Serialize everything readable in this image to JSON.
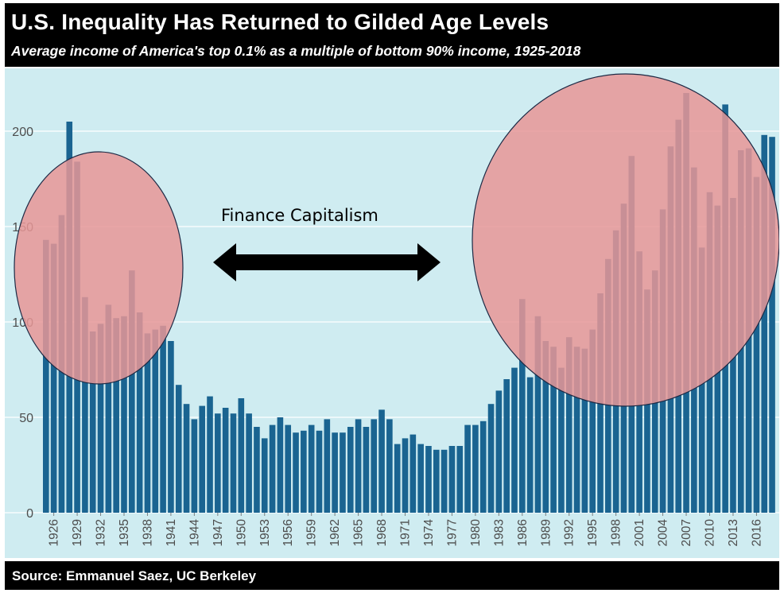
{
  "header": {
    "title": "U.S. Inequality Has Returned to Gilded Age Levels",
    "subtitle": "Average income of America's top 0.1% as a multiple of bottom 90% income, 1925-2018"
  },
  "footer": {
    "source": "Source: Emmanuel Saez, UC Berkeley"
  },
  "colors": {
    "bar": "#1a6491",
    "plot_background": "#cfecf1",
    "gridline": "#ffffff",
    "highlight_fill": "#e89696",
    "highlight_stroke": "#1c2a45",
    "arrow": "#000000"
  },
  "chart_data": {
    "type": "bar",
    "title": "U.S. Inequality Has Returned to Gilded Age Levels",
    "xlabel": "",
    "ylabel": "",
    "ylim": [
      0,
      225
    ],
    "yticks": [
      0,
      50,
      100,
      150,
      200
    ],
    "grid": true,
    "xtick_labels": [
      "1926",
      "1929",
      "1932",
      "1935",
      "1938",
      "1941",
      "1944",
      "1947",
      "1950",
      "1953",
      "1956",
      "1959",
      "1962",
      "1965",
      "1968",
      "1971",
      "1974",
      "1977",
      "1980",
      "1983",
      "1986",
      "1989",
      "1992",
      "1995",
      "1998",
      "2001",
      "2004",
      "2007",
      "2010",
      "2013",
      "2016"
    ],
    "years": [
      1925,
      1926,
      1927,
      1928,
      1929,
      1930,
      1931,
      1932,
      1933,
      1934,
      1935,
      1936,
      1937,
      1938,
      1939,
      1940,
      1941,
      1942,
      1943,
      1944,
      1945,
      1946,
      1947,
      1948,
      1949,
      1950,
      1951,
      1952,
      1953,
      1954,
      1955,
      1956,
      1957,
      1958,
      1959,
      1960,
      1961,
      1962,
      1963,
      1964,
      1965,
      1966,
      1967,
      1968,
      1969,
      1970,
      1971,
      1972,
      1973,
      1974,
      1975,
      1976,
      1977,
      1978,
      1979,
      1980,
      1981,
      1982,
      1983,
      1984,
      1985,
      1986,
      1987,
      1988,
      1989,
      1990,
      1991,
      1992,
      1993,
      1994,
      1995,
      1996,
      1997,
      1998,
      1999,
      2000,
      2001,
      2002,
      2003,
      2004,
      2005,
      2006,
      2007,
      2008,
      2009,
      2010,
      2011,
      2012,
      2013,
      2014,
      2015,
      2016,
      2017,
      2018
    ],
    "values": [
      143,
      141,
      156,
      205,
      184,
      113,
      95,
      99,
      109,
      102,
      103,
      127,
      105,
      94,
      96,
      98,
      90,
      67,
      57,
      49,
      56,
      61,
      52,
      55,
      52,
      60,
      52,
      45,
      39,
      46,
      50,
      46,
      42,
      43,
      46,
      43,
      49,
      42,
      42,
      45,
      49,
      45,
      49,
      54,
      49,
      36,
      39,
      41,
      36,
      35,
      33,
      33,
      35,
      35,
      46,
      46,
      48,
      57,
      64,
      70,
      76,
      112,
      71,
      103,
      90,
      87,
      76,
      92,
      87,
      86,
      96,
      115,
      133,
      148,
      162,
      187,
      137,
      117,
      127,
      159,
      192,
      206,
      220,
      181,
      139,
      168,
      161,
      214,
      165,
      190,
      191,
      176,
      198,
      197
    ]
  },
  "annotations": {
    "label": "Finance Capitalism"
  }
}
